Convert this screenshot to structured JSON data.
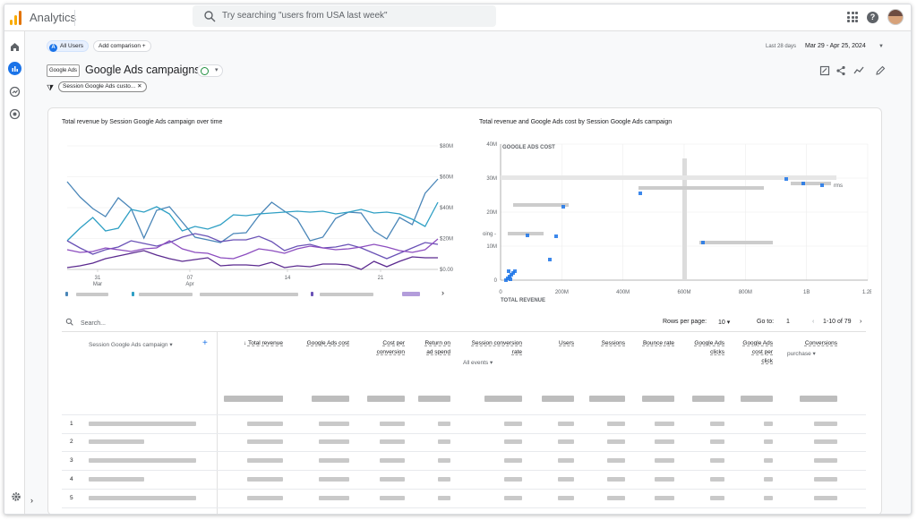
{
  "app": {
    "name": "Analytics"
  },
  "search": {
    "placeholder": "Try searching \"users from USA last week\""
  },
  "comparison": {
    "all_users_badge": "A",
    "all_users": "All Users",
    "add_comparison": "Add comparison",
    "add_icon": "+"
  },
  "date_range": {
    "label": "Last 28 days",
    "value": "Mar 29 - Apr 25, 2024"
  },
  "report": {
    "badge": "Google Ads",
    "title": "Google Ads campaigns",
    "filter_chip": "Session Google Ads custo..."
  },
  "line_chart": {
    "title": "Total revenue by Session Google Ads campaign over time",
    "y_ticks": [
      "$80M",
      "$60M",
      "$40M",
      "$20M",
      "$0.00"
    ],
    "x_ticks": [
      {
        "day": "31",
        "month": "Mar"
      },
      {
        "day": "07",
        "month": "Apr"
      },
      {
        "day": "14",
        "month": ""
      },
      {
        "day": "21",
        "month": ""
      }
    ],
    "series_colors": [
      "#4a86b8",
      "#2e9fc4",
      "#6a52b6",
      "#8c4dbf",
      "#5b2a8f"
    ]
  },
  "scatter_chart": {
    "title": "Total revenue and Google Ads cost by Session Google Ads campaign",
    "y_axis_label": "GOOGLE ADS COST",
    "x_axis_label": "TOTAL REVENUE",
    "y_ticks": [
      "40M",
      "30M",
      "20M",
      "10M",
      "0"
    ],
    "x_ticks": [
      "0",
      "200M",
      "400M",
      "600M",
      "800M",
      "1B",
      "1.2B"
    ],
    "fragments": {
      "left": "oing - ",
      "right": "rms"
    }
  },
  "table": {
    "search_placeholder": "Search...",
    "rows_per_page_label": "Rows per page:",
    "rows_per_page": "10",
    "go_to_label": "Go to:",
    "go_to": "1",
    "range": "1-10 of 79",
    "dimension_header": "Session Google Ads campaign",
    "columns": [
      {
        "label": "Total revenue",
        "sub": ""
      },
      {
        "label": "Google Ads cost",
        "sub": ""
      },
      {
        "label": "Cost per conversion",
        "sub": ""
      },
      {
        "label": "Return on ad spend",
        "sub": ""
      },
      {
        "label": "Session conversion rate",
        "sub": "All events"
      },
      {
        "label": "Users",
        "sub": ""
      },
      {
        "label": "Sessions",
        "sub": ""
      },
      {
        "label": "Bounce rate",
        "sub": ""
      },
      {
        "label": "Google Ads clicks",
        "sub": ""
      },
      {
        "label": "Google Ads cost per click",
        "sub": ""
      },
      {
        "label": "Conversions",
        "sub": "purchase"
      }
    ],
    "row_numbers": [
      "1",
      "2",
      "3",
      "4",
      "5"
    ]
  }
}
